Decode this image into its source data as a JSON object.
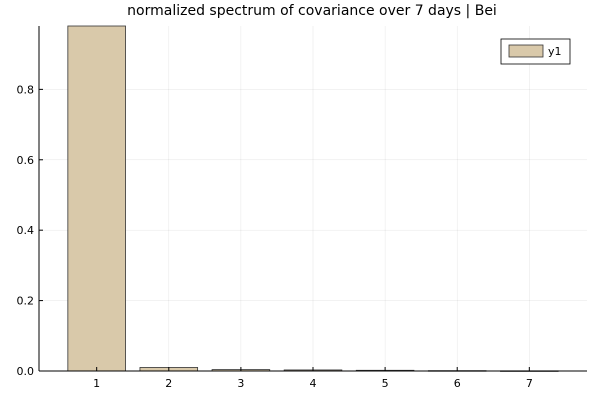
{
  "chart_data": {
    "type": "bar",
    "title": "normalized spectrum of covariance over 7 days | Bei",
    "xlabel": "",
    "ylabel": "",
    "categories": [
      "1",
      "2",
      "3",
      "4",
      "5",
      "6",
      "7"
    ],
    "series": [
      {
        "name": "y1",
        "values": [
          0.98,
          0.01,
          0.004,
          0.003,
          0.002,
          0.001,
          0.0005
        ],
        "color": "#d9c9aa",
        "edge_color": "#333333"
      }
    ],
    "xlim": [
      0.2,
      7.8
    ],
    "ylim": [
      0,
      0.98
    ],
    "yticks": [
      "0.0",
      "0.2",
      "0.4",
      "0.6",
      "0.8"
    ],
    "grid": true,
    "legend": "top-right"
  }
}
